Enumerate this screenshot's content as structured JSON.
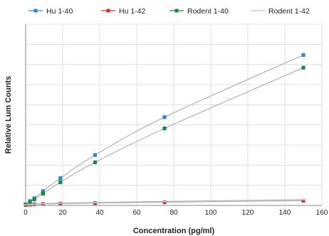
{
  "chart_data": {
    "type": "scatter",
    "xlabel": "Concentration (pg/ml)",
    "ylabel": "Relative Lum Counts",
    "xlim": [
      0,
      160
    ],
    "x_ticks": [
      "0",
      "20",
      "40",
      "60",
      "80",
      "100",
      "120",
      "140",
      "160"
    ],
    "y_ticks_labeled": false,
    "grid": true,
    "legend_position": "top",
    "fit_curves": true,
    "series": [
      {
        "name": "Hu 1-40",
        "color": "#2e86c1",
        "marker": "square",
        "x": [
          0,
          2.34,
          4.69,
          9.38,
          18.75,
          37.5,
          75,
          150
        ],
        "y": [
          0.6,
          2.4,
          4.0,
          7.9,
          15.0,
          27.8,
          48.7,
          83.0
        ]
      },
      {
        "name": "Hu 1-42",
        "color": "#c0392b",
        "marker": "square",
        "x": [
          0,
          2.34,
          4.69,
          9.38,
          18.75,
          37.5,
          75,
          150
        ],
        "y": [
          0.2,
          0.4,
          0.6,
          0.8,
          1.0,
          1.3,
          1.8,
          2.6
        ]
      },
      {
        "name": "Rodent 1-40",
        "color": "#1e8449",
        "marker": "square",
        "x": [
          0,
          2.34,
          4.69,
          9.38,
          18.75,
          37.5,
          75,
          150
        ],
        "y": [
          0.5,
          2.0,
          3.3,
          6.5,
          12.8,
          23.8,
          42.5,
          76.0
        ]
      },
      {
        "name": "Rodent 1-42",
        "color": "#a9cce3",
        "marker": "line",
        "x": [
          0,
          2.34,
          4.69,
          9.38,
          18.75,
          37.5,
          75,
          150
        ],
        "y": [
          0.3,
          0.5,
          0.7,
          1.0,
          1.3,
          1.6,
          2.2,
          3.2
        ]
      }
    ]
  }
}
